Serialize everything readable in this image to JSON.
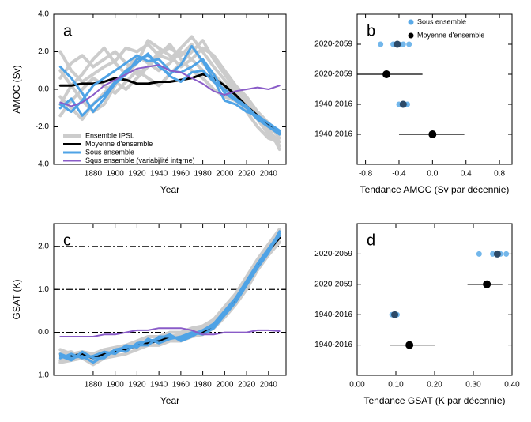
{
  "chart_data": [
    {
      "type": "line",
      "panel_label": "a",
      "x_label": "Year",
      "y_label": "AMOC (Sv)",
      "x": [
        1850,
        1860,
        1870,
        1880,
        1890,
        1900,
        1910,
        1920,
        1930,
        1940,
        1950,
        1960,
        1970,
        1980,
        1990,
        2000,
        2010,
        2020,
        2030,
        2040,
        2050
      ],
      "xlim": [
        1844,
        2056
      ],
      "xticks": [
        1880,
        1900,
        1920,
        1940,
        1960,
        1980,
        2000,
        2020,
        2040
      ],
      "ylim": [
        -4,
        4
      ],
      "yticks": [
        {
          "value": -4,
          "label": "-4.0"
        },
        {
          "value": -2,
          "label": "-2.0"
        },
        {
          "value": 0,
          "label": "0.0"
        },
        {
          "value": 2,
          "label": "2.0"
        },
        {
          "value": 4,
          "label": "4.0"
        }
      ],
      "series": [
        {
          "name": "Ensemble IPSL",
          "color": "#cccccc",
          "members": [
            [
              2.0,
              1.0,
              0.4,
              0.8,
              1.2,
              1.5,
              2.2,
              2.0,
              2.4,
              1.8,
              1.6,
              2.2,
              2.8,
              2.0,
              1.2,
              0.5,
              -0.2,
              -0.8,
              -1.5,
              -2.2,
              -2.8
            ],
            [
              -1.4,
              -0.6,
              0.0,
              0.6,
              0.2,
              -0.2,
              0.4,
              1.0,
              0.6,
              0.2,
              0.8,
              1.4,
              2.0,
              2.6,
              1.6,
              0.8,
              0.0,
              -0.6,
              -1.2,
              -1.8,
              -2.4
            ],
            [
              0.6,
              1.4,
              1.8,
              1.2,
              1.6,
              2.0,
              1.4,
              0.8,
              1.2,
              1.8,
              2.4,
              1.6,
              1.0,
              0.6,
              0.0,
              -0.4,
              -0.6,
              -1.0,
              -1.6,
              -2.4,
              -3.0
            ],
            [
              -0.4,
              -1.0,
              -1.6,
              -0.8,
              -0.2,
              0.4,
              0.0,
              0.6,
              1.2,
              2.0,
              2.2,
              1.8,
              2.4,
              1.4,
              0.8,
              0.2,
              -0.2,
              -0.8,
              -1.4,
              -2.0,
              -3.2
            ],
            [
              1.0,
              0.2,
              -0.6,
              -1.2,
              -0.8,
              0.2,
              1.0,
              1.8,
              1.4,
              1.0,
              1.4,
              2.0,
              1.6,
              1.0,
              0.4,
              0.0,
              -0.4,
              -1.2,
              -2.0,
              -2.6,
              -2.8
            ],
            [
              -0.8,
              0.2,
              0.8,
              1.6,
              2.2,
              1.4,
              0.8,
              1.4,
              2.6,
              2.2,
              1.8,
              1.2,
              1.6,
              2.2,
              1.8,
              1.0,
              0.2,
              -0.4,
              -1.2,
              -1.8,
              -2.6
            ]
          ]
        },
        {
          "name": "Moyenne d'ensemble",
          "color": "#000000",
          "values": [
            0.2,
            0.2,
            0.3,
            0.3,
            0.4,
            0.6,
            0.5,
            0.3,
            0.3,
            0.4,
            0.4,
            0.5,
            0.6,
            0.8,
            0.6,
            0.2,
            -0.3,
            -0.9,
            -1.4,
            -1.9,
            -2.3
          ]
        },
        {
          "name": "Sous ensemble",
          "color": "#4fa3e6",
          "members": [
            [
              -0.8,
              -1.2,
              -0.6,
              0.2,
              0.6,
              1.0,
              1.4,
              1.8,
              1.5,
              1.6,
              1.0,
              0.9,
              1.2,
              1.6,
              0.8,
              -0.2,
              -0.6,
              -1.0,
              -1.6,
              -2.0,
              -2.4
            ],
            [
              -1.0,
              -0.5,
              -1.4,
              -0.8,
              -0.3,
              0.4,
              1.0,
              1.4,
              1.9,
              1.2,
              0.8,
              1.3,
              2.3,
              1.5,
              0.5,
              -0.6,
              -0.8,
              -1.2,
              -1.4,
              -1.8,
              -2.2
            ],
            [
              1.2,
              0.6,
              -0.2,
              -1.2,
              -0.5,
              0.3,
              0.8,
              1.6,
              1.8,
              1.3,
              0.7,
              0.4,
              0.9,
              1.0,
              0.4,
              0.0,
              -0.5,
              -0.9,
              -1.5,
              -2.0,
              -2.3
            ]
          ]
        },
        {
          "name": "Sous ensemble (variabilité interne)",
          "color": "#8a5cc8",
          "values": [
            -0.7,
            -0.9,
            -0.7,
            -0.3,
            0.2,
            0.5,
            0.8,
            1.1,
            1.2,
            1.3,
            1.0,
            0.9,
            0.6,
            0.3,
            -0.1,
            -0.3,
            -0.1,
            0.0,
            0.1,
            0.0,
            0.2
          ]
        }
      ]
    },
    {
      "type": "dot",
      "panel_label": "b",
      "x_label": "Tendance AMOC (Sv par décennie)",
      "categories": [
        "2020-2059",
        "2020-2059",
        "1940-2016",
        "1940-2016"
      ],
      "xlim": [
        -0.9,
        0.95
      ],
      "xticks": [
        -0.8,
        -0.4,
        {
          "value": 0,
          "label": "0.0"
        },
        0.4,
        0.8
      ],
      "series": [
        {
          "name": "Sous ensemble",
          "color": "#5aaae8",
          "points": [
            [
              -0.62,
              -0.47,
              -0.44,
              -0.4,
              -0.35,
              -0.28
            ],
            null,
            [
              -0.4,
              -0.36,
              -0.33,
              -0.3
            ],
            null
          ],
          "means": [
            -0.42,
            null,
            -0.35,
            null
          ],
          "mean_color": "#2c4a68"
        },
        {
          "name": "Moyenne d'ensemble",
          "color": "#000000",
          "values": [
            null,
            -0.55,
            null,
            0.0
          ],
          "intervals": [
            null,
            [
              -0.9,
              -0.12
            ],
            null,
            [
              -0.4,
              0.38
            ]
          ]
        }
      ]
    },
    {
      "type": "line",
      "panel_label": "c",
      "x_label": "Year",
      "y_label": "GSAT (K)",
      "x": [
        1850,
        1860,
        1870,
        1880,
        1890,
        1900,
        1910,
        1920,
        1930,
        1940,
        1950,
        1960,
        1970,
        1980,
        1990,
        2000,
        2010,
        2020,
        2030,
        2040,
        2050
      ],
      "xlim": [
        1844,
        2056
      ],
      "xticks": [
        1880,
        1900,
        1920,
        1940,
        1960,
        1980,
        2000,
        2020,
        2040
      ],
      "ylim": [
        -1,
        2.53
      ],
      "yticks": [
        {
          "value": -1,
          "label": "-1.0"
        },
        {
          "value": 0,
          "label": "0.0"
        },
        {
          "value": 1,
          "label": "1.0"
        },
        {
          "value": 2,
          "label": "2.0"
        }
      ],
      "reference_lines": [
        0,
        1,
        2
      ],
      "series": [
        {
          "color": "#cccccc",
          "members": [
            [
              -0.4,
              -0.5,
              -0.45,
              -0.5,
              -0.4,
              -0.35,
              -0.3,
              -0.2,
              -0.1,
              -0.1,
              0.0,
              0.0,
              0.1,
              0.15,
              0.3,
              0.6,
              0.9,
              1.3,
              1.7,
              2.05,
              2.4
            ],
            [
              -0.7,
              -0.65,
              -0.6,
              -0.75,
              -0.6,
              -0.55,
              -0.5,
              -0.4,
              -0.3,
              -0.3,
              -0.2,
              -0.2,
              -0.1,
              -0.05,
              0.1,
              0.35,
              0.65,
              1.0,
              1.45,
              1.8,
              2.1
            ],
            [
              -0.5,
              -0.45,
              -0.6,
              -0.55,
              -0.55,
              -0.5,
              -0.35,
              -0.35,
              -0.25,
              -0.15,
              -0.1,
              -0.05,
              0.05,
              0.1,
              0.25,
              0.55,
              0.85,
              1.25,
              1.65,
              2.0,
              2.3
            ],
            [
              -0.65,
              -0.6,
              -0.5,
              -0.65,
              -0.45,
              -0.45,
              -0.4,
              -0.25,
              -0.2,
              -0.2,
              -0.15,
              -0.1,
              0.0,
              0.05,
              0.2,
              0.5,
              0.8,
              1.2,
              1.55,
              1.9,
              2.2
            ]
          ]
        },
        {
          "color": "#000000",
          "values": [
            -0.55,
            -0.55,
            -0.5,
            -0.6,
            -0.5,
            -0.45,
            -0.4,
            -0.3,
            -0.25,
            -0.2,
            -0.1,
            -0.15,
            -0.05,
            0.0,
            0.15,
            0.45,
            0.75,
            1.15,
            1.55,
            1.9,
            2.2
          ]
        },
        {
          "color": "#4fa3e6",
          "members": [
            [
              -0.5,
              -0.6,
              -0.55,
              -0.7,
              -0.55,
              -0.4,
              -0.45,
              -0.25,
              -0.2,
              -0.15,
              -0.05,
              -0.2,
              -0.1,
              0.05,
              0.2,
              0.5,
              0.8,
              1.2,
              1.6,
              1.95,
              2.3
            ],
            [
              -0.6,
              -0.5,
              -0.6,
              -0.55,
              -0.45,
              -0.5,
              -0.3,
              -0.35,
              -0.15,
              -0.25,
              -0.15,
              -0.1,
              0.0,
              -0.05,
              0.1,
              0.4,
              0.7,
              1.1,
              1.5,
              1.85,
              2.35
            ],
            [
              -0.55,
              -0.65,
              -0.45,
              -0.6,
              -0.6,
              -0.4,
              -0.35,
              -0.3,
              -0.3,
              -0.1,
              -0.1,
              -0.15,
              -0.05,
              0.05,
              0.15,
              0.45,
              0.8,
              1.15,
              1.6,
              1.9,
              2.25
            ]
          ]
        },
        {
          "color": "#8a5cc8",
          "values": [
            -0.1,
            -0.1,
            -0.1,
            -0.1,
            -0.05,
            -0.05,
            0.0,
            0.05,
            0.05,
            0.1,
            0.1,
            0.1,
            0.05,
            -0.05,
            -0.05,
            0.0,
            0.0,
            0.0,
            0.05,
            0.05,
            0.03
          ]
        }
      ]
    },
    {
      "type": "dot",
      "panel_label": "d",
      "x_label": "Tendance GSAT (K par décennie)",
      "categories": [
        "2020-2059",
        "2020-2059",
        "1940-2016",
        "1940-2016"
      ],
      "xlim": [
        0,
        0.4
      ],
      "xticks": [
        {
          "value": 0,
          "label": "0.00"
        },
        {
          "value": 0.1,
          "label": "0.10"
        },
        {
          "value": 0.2,
          "label": "0.20"
        },
        {
          "value": 0.3,
          "label": "0.30"
        },
        {
          "value": 0.4,
          "label": "0.40"
        }
      ],
      "series": [
        {
          "color": "#5aaae8",
          "points": [
            [
              0.315,
              0.35,
              0.36,
              0.37,
              0.385
            ],
            null,
            [
              0.09,
              0.095,
              0.1,
              0.103
            ],
            null
          ],
          "means": [
            0.362,
            null,
            0.097,
            null
          ],
          "mean_color": "#2c4a68"
        },
        {
          "color": "#000000",
          "values": [
            null,
            0.335,
            null,
            0.135
          ],
          "intervals": [
            null,
            [
              0.285,
              0.375
            ],
            null,
            [
              0.085,
              0.2
            ]
          ]
        }
      ]
    }
  ]
}
